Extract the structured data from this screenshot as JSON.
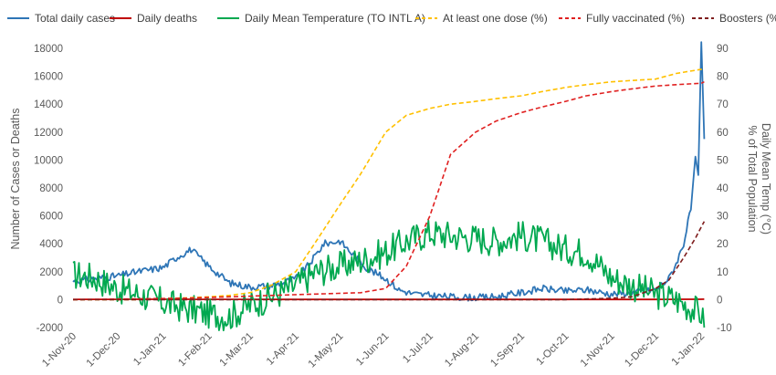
{
  "chart_data": {
    "type": "line",
    "title": "",
    "legend_position": "top",
    "grid": false,
    "x_tick_labels": [
      "1-Nov-20",
      "1-Dec-20",
      "1-Jan-21",
      "1-Feb-21",
      "1-Mar-21",
      "1-Apr-21",
      "1-May-21",
      "1-Jun-21",
      "1-Jul-21",
      "1-Aug-21",
      "1-Sep-21",
      "1-Oct-21",
      "1-Nov-21",
      "1-Dec-21",
      "1-Jan-22"
    ],
    "y_left": {
      "label": "Number of Cases or Deaths",
      "ylim": [
        -2000,
        18000
      ],
      "ticks": [
        -2000,
        0,
        2000,
        4000,
        6000,
        8000,
        10000,
        12000,
        14000,
        16000,
        18000
      ]
    },
    "y_right": {
      "label_line1": "% of Total Population",
      "label_line2": "Daily Mean Temp (°C)",
      "ylim": [
        -10,
        90
      ],
      "ticks": [
        -10,
        0,
        10,
        20,
        30,
        40,
        50,
        60,
        70,
        80,
        90
      ]
    },
    "series": [
      {
        "name": "Total daily cases",
        "axis": "left",
        "style": "solid",
        "color": "#2E75B6",
        "x": [
          "2020-11-01",
          "2020-11-15",
          "2020-12-01",
          "2020-12-15",
          "2021-01-01",
          "2021-01-10",
          "2021-01-20",
          "2021-02-01",
          "2021-02-15",
          "2021-03-01",
          "2021-03-15",
          "2021-04-01",
          "2021-04-10",
          "2021-04-20",
          "2021-05-01",
          "2021-05-10",
          "2021-05-20",
          "2021-06-01",
          "2021-06-10",
          "2021-06-20",
          "2021-07-01",
          "2021-07-15",
          "2021-08-01",
          "2021-08-15",
          "2021-09-01",
          "2021-09-15",
          "2021-10-01",
          "2021-10-15",
          "2021-11-01",
          "2021-11-15",
          "2021-12-01",
          "2021-12-10",
          "2021-12-15",
          "2021-12-20",
          "2021-12-25",
          "2021-12-28",
          "2021-12-30",
          "2022-01-01",
          "2022-01-03"
        ],
        "values": [
          1300,
          1500,
          1700,
          2000,
          2300,
          3000,
          3600,
          2400,
          1200,
          900,
          1000,
          1500,
          2500,
          4000,
          4200,
          3200,
          2200,
          1500,
          700,
          400,
          300,
          200,
          150,
          200,
          500,
          800,
          600,
          700,
          400,
          500,
          700,
          1500,
          2600,
          4000,
          6500,
          10000,
          8800,
          18300,
          11500
        ]
      },
      {
        "name": "Daily deaths",
        "axis": "left",
        "style": "solid",
        "color": "#C00000",
        "x": [
          "2020-11-01",
          "2021-01-01",
          "2021-04-01",
          "2021-08-01",
          "2021-12-01",
          "2022-01-03"
        ],
        "values": [
          20,
          25,
          15,
          10,
          15,
          30
        ]
      },
      {
        "name": "Daily Mean Temperature (TO INTL A)",
        "axis": "right",
        "style": "solid",
        "color": "#00A84F",
        "x": [
          "2020-11-01",
          "2020-11-15",
          "2020-12-01",
          "2020-12-15",
          "2021-01-01",
          "2021-01-15",
          "2021-02-01",
          "2021-02-15",
          "2021-03-01",
          "2021-03-15",
          "2021-04-01",
          "2021-04-15",
          "2021-05-01",
          "2021-05-15",
          "2021-06-01",
          "2021-06-15",
          "2021-07-01",
          "2021-07-15",
          "2021-08-01",
          "2021-08-15",
          "2021-09-01",
          "2021-09-15",
          "2021-10-01",
          "2021-10-15",
          "2021-11-01",
          "2021-11-15",
          "2021-12-01",
          "2021-12-15",
          "2022-01-01",
          "2022-01-03"
        ],
        "values": [
          9,
          8,
          4,
          2,
          -1,
          -3,
          -5,
          -6,
          -2,
          1,
          5,
          10,
          12,
          14,
          17,
          21,
          24,
          23,
          22,
          21,
          23,
          21,
          18,
          17,
          8,
          5,
          2,
          0,
          -5,
          -10
        ]
      },
      {
        "name": "At least one dose (%)",
        "axis": "right",
        "style": "dashed",
        "color": "#FFC000",
        "x": [
          "2020-11-01",
          "2020-12-15",
          "2021-01-01",
          "2021-01-15",
          "2021-02-01",
          "2021-02-15",
          "2021-03-01",
          "2021-03-15",
          "2021-04-01",
          "2021-04-15",
          "2021-05-01",
          "2021-05-15",
          "2021-06-01",
          "2021-06-15",
          "2021-07-01",
          "2021-07-15",
          "2021-08-01",
          "2021-08-15",
          "2021-09-01",
          "2021-09-15",
          "2021-10-01",
          "2021-10-15",
          "2021-11-01",
          "2021-11-15",
          "2021-12-01",
          "2021-12-15",
          "2022-01-01",
          "2022-01-03"
        ],
        "values": [
          0,
          0,
          0.3,
          0.6,
          1,
          1.5,
          2.5,
          5,
          10,
          21,
          34,
          45,
          60,
          66,
          68.5,
          70,
          71,
          72,
          73,
          74.5,
          76,
          77,
          78,
          78.5,
          79,
          81,
          82.5,
          83
        ]
      },
      {
        "name": "Fully vaccinated  (%)",
        "axis": "right",
        "style": "dashed",
        "color": "#E02020",
        "x": [
          "2020-11-01",
          "2021-01-15",
          "2021-02-15",
          "2021-03-15",
          "2021-04-15",
          "2021-05-15",
          "2021-06-01",
          "2021-06-15",
          "2021-07-01",
          "2021-07-15",
          "2021-08-01",
          "2021-08-15",
          "2021-09-01",
          "2021-09-15",
          "2021-10-01",
          "2021-10-15",
          "2021-11-01",
          "2021-11-15",
          "2021-12-01",
          "2021-12-15",
          "2022-01-01",
          "2022-01-03"
        ],
        "values": [
          0,
          0.5,
          1,
          1.5,
          2,
          2.5,
          4,
          12,
          30,
          52,
          60,
          64,
          67,
          69,
          71,
          73,
          74.5,
          75.5,
          76.5,
          77,
          77.5,
          78
        ]
      },
      {
        "name": "Boosters (%)",
        "axis": "right",
        "style": "dashed",
        "color": "#7F1D1D",
        "x": [
          "2020-11-01",
          "2021-10-01",
          "2021-11-01",
          "2021-11-15",
          "2021-12-01",
          "2021-12-10",
          "2021-12-20",
          "2021-12-28",
          "2022-01-03"
        ],
        "values": [
          0,
          0,
          0.5,
          1,
          4,
          7,
          15,
          22,
          28
        ]
      }
    ]
  }
}
